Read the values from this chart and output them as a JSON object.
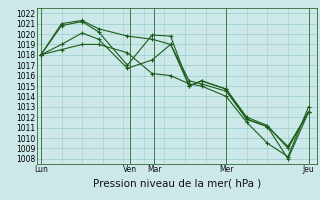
{
  "xlabel": "Pression niveau de la mer( hPa )",
  "ylim": [
    1007.5,
    1022.5
  ],
  "yticks": [
    1008,
    1009,
    1010,
    1011,
    1012,
    1013,
    1014,
    1015,
    1016,
    1017,
    1018,
    1019,
    1020,
    1021,
    1022
  ],
  "day_labels": [
    "Lun",
    "Ven",
    "Mar",
    "Mer",
    "Jeu"
  ],
  "day_positions": [
    0,
    4.33,
    5.5,
    9.0,
    13.0
  ],
  "bg_color": "#cce8e8",
  "grid_color": "#99cccc",
  "line_color": "#1a5c1a",
  "line1_x": [
    0,
    1,
    2,
    2.8,
    4.2,
    5.4,
    6.3,
    7.2,
    7.8,
    9.0,
    10.0,
    11.0,
    12.0,
    13.0
  ],
  "line1_y": [
    1018.0,
    1021.0,
    1021.3,
    1020.5,
    1019.8,
    1019.5,
    1019.0,
    1015.5,
    1015.2,
    1014.5,
    1011.8,
    1011.1,
    1008.0,
    1012.5
  ],
  "line2_x": [
    0,
    1,
    2,
    2.8,
    4.2,
    5.4,
    6.3,
    7.2,
    7.8,
    9.0,
    10.0,
    11.0,
    12.0,
    13.0
  ],
  "line2_y": [
    1018.0,
    1020.8,
    1021.2,
    1020.2,
    1017.0,
    1019.9,
    1019.8,
    1015.0,
    1015.5,
    1014.7,
    1011.8,
    1011.1,
    1009.2,
    1012.5
  ],
  "line3_x": [
    0,
    1,
    2,
    2.8,
    4.2,
    5.4,
    6.3,
    7.2,
    7.8,
    9.0,
    10.0,
    11.0,
    12.0,
    13.0
  ],
  "line3_y": [
    1018.0,
    1019.0,
    1020.1,
    1019.5,
    1016.7,
    1017.5,
    1019.0,
    1015.0,
    1015.5,
    1014.7,
    1012.0,
    1011.2,
    1009.0,
    1012.5
  ],
  "line4_x": [
    0,
    1,
    2,
    2.8,
    4.2,
    5.4,
    6.3,
    7.2,
    7.8,
    9.0,
    10.0,
    11.0,
    12.0,
    13.0
  ],
  "line4_y": [
    1018.0,
    1018.5,
    1019.0,
    1019.0,
    1018.2,
    1016.2,
    1016.0,
    1015.2,
    1015.0,
    1014.0,
    1011.5,
    1009.5,
    1008.2,
    1013.0
  ],
  "vlines_x": [
    0,
    4.33,
    5.5,
    9.0,
    13.0
  ],
  "xlabel_fontsize": 7.5,
  "tick_fontsize": 5.5
}
